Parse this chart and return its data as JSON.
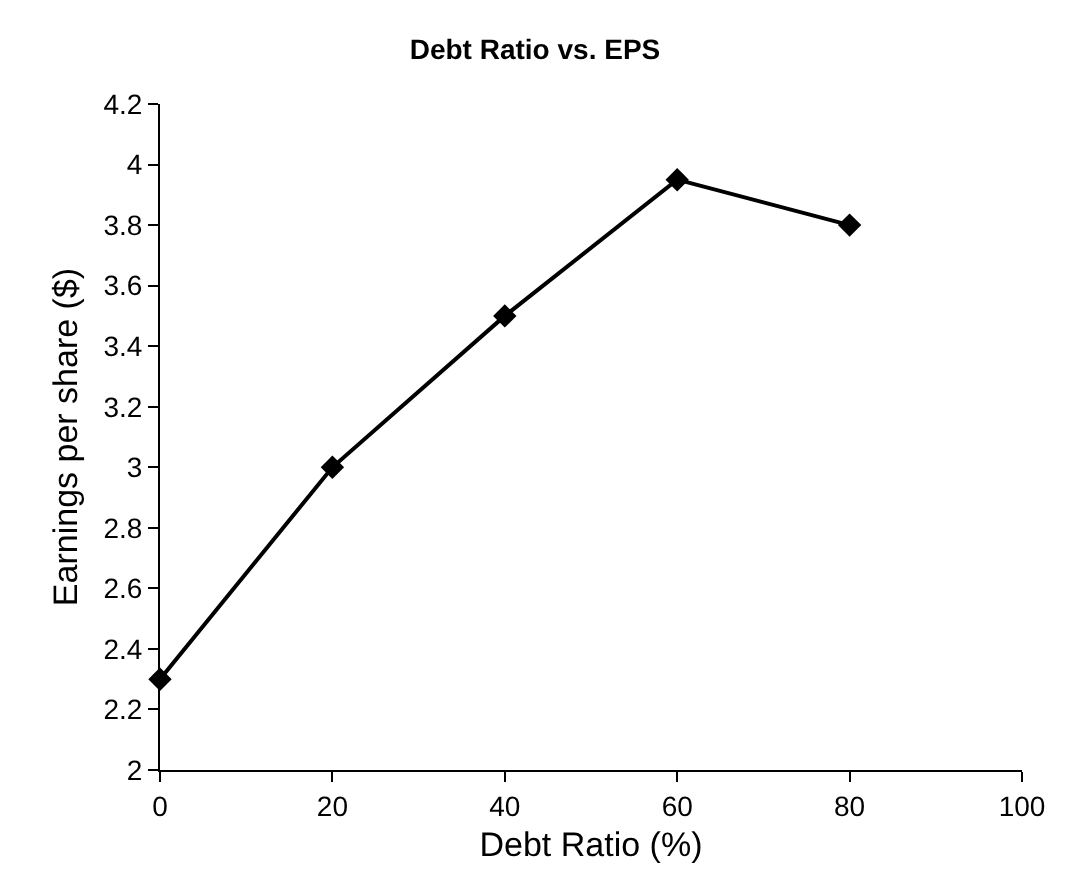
{
  "chart_data": {
    "type": "line",
    "title": "Debt Ratio vs. EPS",
    "xlabel": "Debt Ratio (%)",
    "ylabel": "Earnings per share ($)",
    "x": [
      0,
      20,
      40,
      60,
      80
    ],
    "series": [
      {
        "color": "#000000",
        "values": [
          2.3,
          3.0,
          3.5,
          3.95,
          3.8
        ]
      }
    ],
    "xlim": [
      0,
      100
    ],
    "xticks": [
      0,
      20,
      40,
      60,
      80,
      100
    ],
    "ylim": [
      2,
      4.2
    ],
    "yticks": [
      2,
      2.2,
      2.4,
      2.6,
      2.8,
      3,
      3.2,
      3.4,
      3.6,
      3.8,
      4,
      4.2
    ],
    "marker": "diamond",
    "line_style": "solid"
  }
}
